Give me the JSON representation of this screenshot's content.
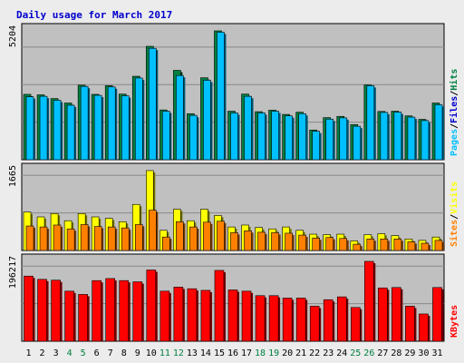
{
  "chart_data": {
    "type": "bar",
    "title": "Daily usage for March 2017",
    "days": [
      "1",
      "2",
      "3",
      "4",
      "5",
      "6",
      "7",
      "8",
      "9",
      "10",
      "11",
      "12",
      "13",
      "14",
      "15",
      "16",
      "17",
      "18",
      "19",
      "20",
      "21",
      "22",
      "23",
      "24",
      "25",
      "26",
      "27",
      "28",
      "29",
      "30",
      "31"
    ],
    "weekend_days": [
      "4",
      "5",
      "11",
      "12",
      "18",
      "19",
      "25",
      "26"
    ],
    "colors": {
      "background": "#ececec",
      "plot": "#c0c0c0",
      "title": "#0000cc",
      "hits": "#008040",
      "files": "#00c0ff",
      "pages": "#00c0ff",
      "visits": "#ffff00",
      "sites": "#ff8000",
      "kbytes": "#ff0000",
      "weekday_label": "#000000",
      "weekend_label": "#008040",
      "separator": "#000000"
    },
    "panels": [
      {
        "id": "hits",
        "max_label": "5204",
        "ymax": 5204,
        "legend": [
          {
            "text": "Pages",
            "color": "#00c0ff"
          },
          {
            "text": "/",
            "color": "#000000"
          },
          {
            "text": "Files",
            "color": "#0000cc"
          },
          {
            "text": "/",
            "color": "#000000"
          },
          {
            "text": "Hits",
            "color": "#008040"
          }
        ],
        "series": [
          {
            "name": "Hits",
            "color": "#008040",
            "values": [
              2640,
              2620,
              2470,
              2290,
              3010,
              2640,
              2990,
              2650,
              3370,
              4580,
              2010,
              3610,
              1860,
              3310,
              5204,
              1960,
              2650,
              1940,
              2000,
              1830,
              1920,
              1200,
              1700,
              1750,
              1420,
              3020,
              1950,
              1960,
              1770,
              1630,
              2290
            ]
          },
          {
            "name": "Files",
            "color": "#00c0ff",
            "values": [
              2540,
              2560,
              2400,
              2200,
              2960,
              2600,
              2940,
              2580,
              3300,
              4500,
              1960,
              3400,
              1790,
              3210,
              5150,
              1890,
              2560,
              1890,
              1960,
              1770,
              1860,
              1150,
              1640,
              1690,
              1350,
              2990,
              1910,
              1920,
              1720,
              1580,
              2220
            ]
          }
        ],
        "pages": []
      },
      {
        "id": "visits",
        "max_label": "1665",
        "ymax": 1665,
        "legend": [
          {
            "text": "Sites",
            "color": "#ff8000"
          },
          {
            "text": "/",
            "color": "#000000"
          },
          {
            "text": "Visits",
            "color": "#ffff00"
          }
        ],
        "series": [
          {
            "name": "Visits",
            "color": "#ffff00",
            "values": [
              800,
              700,
              770,
              620,
              770,
              700,
              670,
              600,
              960,
              1665,
              420,
              860,
              620,
              860,
              730,
              490,
              530,
              480,
              450,
              490,
              420,
              340,
              330,
              340,
              200,
              330,
              350,
              310,
              240,
              210,
              280
            ]
          },
          {
            "name": "Sites",
            "color": "#ff8000",
            "values": [
              510,
              490,
              530,
              450,
              540,
              500,
              490,
              470,
              540,
              840,
              280,
              600,
              490,
              590,
              610,
              370,
              410,
              380,
              370,
              360,
              320,
              260,
              270,
              250,
              130,
              240,
              240,
              240,
              180,
              150,
              210
            ]
          }
        ]
      },
      {
        "id": "kbytes",
        "max_label": "196217",
        "ymax": 196217,
        "legend": [
          {
            "text": "KBytes",
            "color": "#ff0000"
          }
        ],
        "series": [
          {
            "name": "KBytes",
            "color": "#ff0000",
            "values": [
              160000,
              152000,
              150000,
              123000,
              115000,
              149000,
              154000,
              149000,
              146000,
              175000,
              123000,
              133000,
              129000,
              125000,
              174000,
              126000,
              123000,
              112000,
              112000,
              106000,
              106000,
              86000,
              102000,
              109000,
              83000,
              196217,
              131000,
              132000,
              86000,
              67000,
              132000
            ]
          }
        ]
      }
    ]
  }
}
